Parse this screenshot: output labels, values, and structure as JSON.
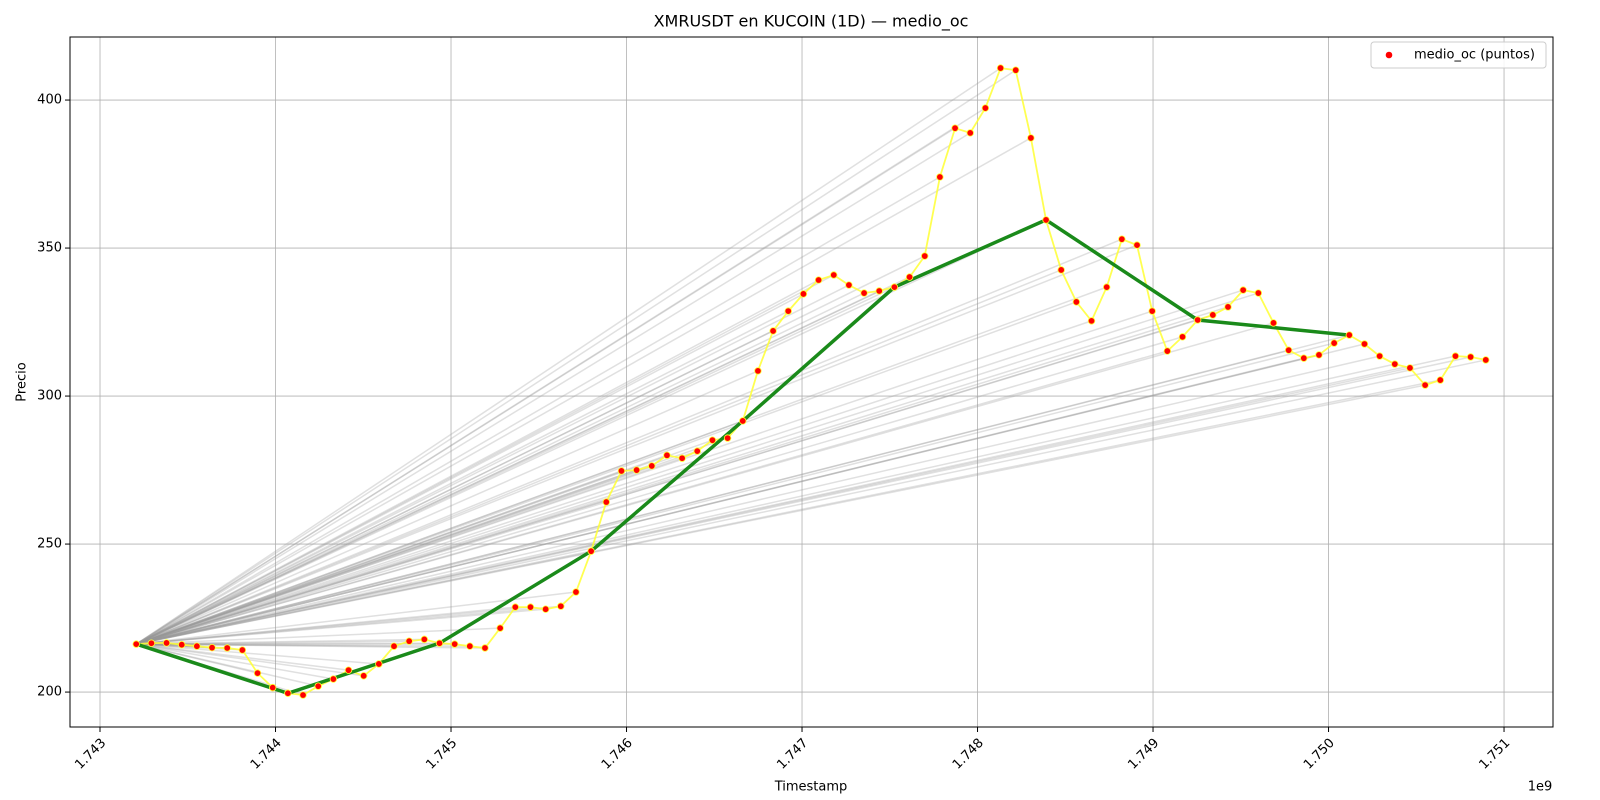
{
  "chart_data": {
    "type": "scatter-line",
    "title": "XMRUSDT en KUCOIN (1D) — medio_oc",
    "x_label": "Timestamp",
    "y_label": "Precio",
    "x_offset_label": "1e9",
    "legend_position": "upper right",
    "grid": true,
    "xlim": [
      1742829000,
      1751279000
    ],
    "ylim": [
      188.2,
      421.3
    ],
    "xticks": [
      {
        "value": 1743000000,
        "label": "1.743"
      },
      {
        "value": 1744000000,
        "label": "1.744"
      },
      {
        "value": 1745000000,
        "label": "1.745"
      },
      {
        "value": 1746000000,
        "label": "1.746"
      },
      {
        "value": 1747000000,
        "label": "1.747"
      },
      {
        "value": 1748000000,
        "label": "1.748"
      },
      {
        "value": 1749000000,
        "label": "1.749"
      },
      {
        "value": 1750000000,
        "label": "1.750"
      },
      {
        "value": 1751000000,
        "label": "1.751"
      }
    ],
    "yticks": [
      200,
      250,
      300,
      350,
      400
    ],
    "points": {
      "name": "medio_oc (puntos)",
      "color": "#ff0000",
      "line_color": "#ffff33",
      "fan_color": "#999999",
      "x": [
        1743206400,
        1743292800,
        1743379200,
        1743465600,
        1743552000,
        1743638400,
        1743724800,
        1743811200,
        1743897600,
        1743984000,
        1744070400,
        1744156800,
        1744243200,
        1744329600,
        1744416000,
        1744502400,
        1744588800,
        1744675200,
        1744761600,
        1744848000,
        1744934400,
        1745020800,
        1745107200,
        1745193600,
        1745280000,
        1745366400,
        1745452800,
        1745539200,
        1745625600,
        1745712000,
        1745798400,
        1745884800,
        1745971200,
        1746057600,
        1746144000,
        1746230400,
        1746316800,
        1746403200,
        1746489600,
        1746576000,
        1746662400,
        1746748800,
        1746835200,
        1746921600,
        1747008000,
        1747094400,
        1747180800,
        1747267200,
        1747353600,
        1747440000,
        1747526400,
        1747612800,
        1747699200,
        1747785600,
        1747872000,
        1747958400,
        1748044800,
        1748131200,
        1748217600,
        1748304000,
        1748390400,
        1748476800,
        1748563200,
        1748649600,
        1748736000,
        1748822400,
        1748908800,
        1748995200,
        1749081600,
        1749168000,
        1749254400,
        1749340800,
        1749427200,
        1749513600,
        1749600000,
        1749686400,
        1749772800,
        1749859200,
        1749945600,
        1750032000,
        1750118400,
        1750204800,
        1750291200,
        1750377600,
        1750464000,
        1750550400,
        1750636800,
        1750723200,
        1750809600,
        1750896000
      ],
      "values": [
        216.2,
        216.5,
        216.6,
        216,
        215.5,
        215,
        214.9,
        214.2,
        206.4,
        201.5,
        199.6,
        199,
        202,
        204.4,
        207.4,
        205.5,
        209.5,
        215.5,
        217.2,
        217.8,
        216.5,
        216.2,
        215.5,
        214.9,
        221.6,
        228.7,
        228.7,
        228,
        229,
        233.8,
        247.6,
        264.2,
        274.7,
        275,
        276.4,
        280,
        279,
        281.4,
        285.1,
        285.8,
        291.6,
        308.5,
        322,
        328.7,
        334.5,
        339.2,
        340.9,
        337.5,
        334.8,
        335.5,
        336.8,
        340.2,
        347.3,
        374,
        390.5,
        388.9,
        397.3,
        410.8,
        410.1,
        387.2,
        359.5,
        342.6,
        331.8,
        325.4,
        336.8,
        353,
        351,
        328.7,
        315.2,
        320,
        325.7,
        327.4,
        330.1,
        335.8,
        334.8,
        324.7,
        315.5,
        312.8,
        313.9,
        317.9,
        320.6,
        317.6,
        313.5,
        310.8,
        309.5,
        303.7,
        305.4,
        313.5,
        313.2,
        312.2
      ]
    },
    "trend": {
      "color": "#1a8a1a",
      "x": [
        1743206400,
        1744070400,
        1744934400,
        1745798400,
        1746662400,
        1747526400,
        1748390400,
        1749254400,
        1750118400
      ],
      "values": [
        216.2,
        199.6,
        216.5,
        247.6,
        291.6,
        336.8,
        359.5,
        325.7,
        320.6
      ]
    }
  }
}
